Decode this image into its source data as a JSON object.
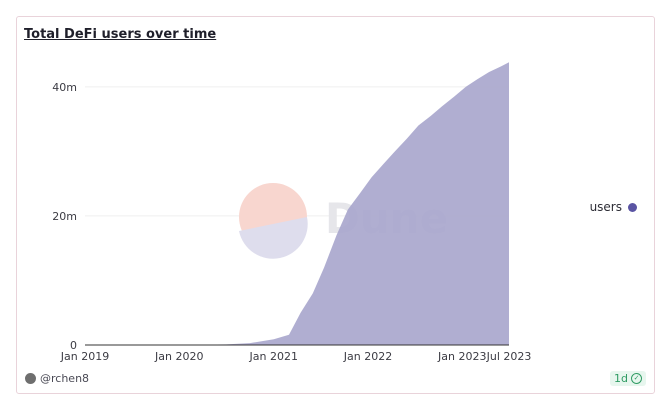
{
  "title": "Total DeFi users over time",
  "author": "@rchen8",
  "refresh_badge": "1d",
  "watermark": "Dune",
  "colors": {
    "series": "#a9a7cd",
    "legend_dot": "#5a54a3",
    "grid": "#efefef"
  },
  "chart_data": {
    "type": "area",
    "title": "Total DeFi users over time",
    "xlabel": "",
    "ylabel": "",
    "xlim": [
      "2019-01-01",
      "2023-07-01"
    ],
    "ylim": [
      0,
      44000000
    ],
    "y_ticks": [
      0,
      20000000,
      40000000
    ],
    "y_tick_labels": [
      "0",
      "20m",
      "40m"
    ],
    "x_ticks": [
      "2019-01-01",
      "2020-01-01",
      "2021-01-01",
      "2022-01-01",
      "2023-01-01",
      "2023-07-01"
    ],
    "x_tick_labels": [
      "Jan 2019",
      "Jan 2020",
      "Jan 2021",
      "Jan 2022",
      "Jan 2023",
      "Jul 2023"
    ],
    "grid": true,
    "legend": "right",
    "series": [
      {
        "name": "users",
        "x": [
          "2019-01-01",
          "2019-07-01",
          "2020-01-01",
          "2020-07-01",
          "2020-10-01",
          "2021-01-01",
          "2021-03-01",
          "2021-04-15",
          "2021-06-01",
          "2021-07-15",
          "2021-09-01",
          "2021-10-15",
          "2021-12-01",
          "2022-01-15",
          "2022-03-01",
          "2022-04-15",
          "2022-06-01",
          "2022-07-15",
          "2022-09-01",
          "2022-10-15",
          "2022-12-01",
          "2023-01-15",
          "2023-03-01",
          "2023-04-15",
          "2023-06-01",
          "2023-07-01"
        ],
        "values": [
          0,
          0,
          0,
          100000,
          300000,
          900000,
          1600000,
          5000000,
          8000000,
          12000000,
          17000000,
          21000000,
          23500000,
          26000000,
          28000000,
          30000000,
          32000000,
          34000000,
          35500000,
          37000000,
          38500000,
          40000000,
          41200000,
          42300000,
          43200000,
          43800000
        ]
      }
    ]
  }
}
